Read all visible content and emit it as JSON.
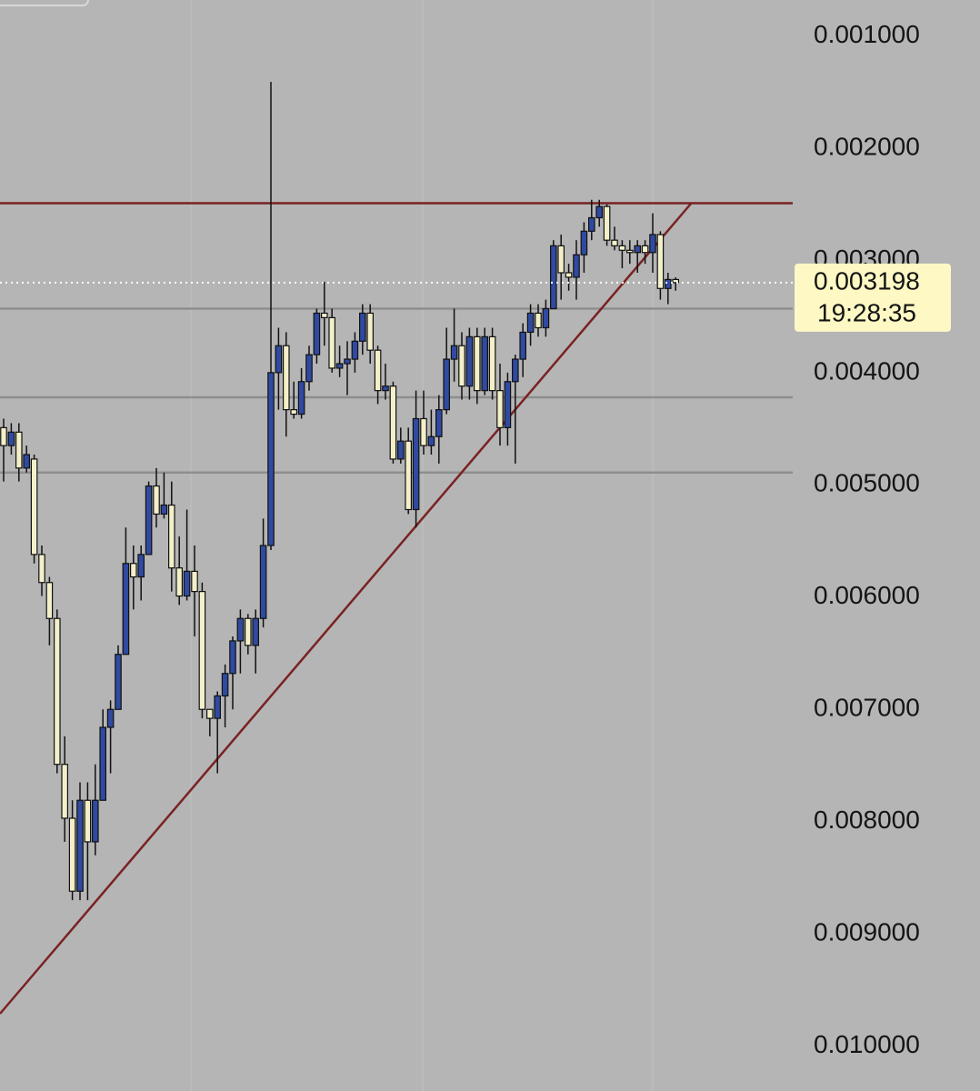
{
  "chart_data": {
    "type": "candlestick",
    "open": [
      0.00449,
      0.00465,
      0.00453,
      0.00485,
      0.00477,
      0.00562,
      0.00587,
      0.00619,
      0.00749,
      0.00797,
      0.00862,
      0.00781,
      0.00818,
      0.00781,
      0.00716,
      0.007,
      0.00651,
      0.0057,
      0.00582,
      0.00562,
      0.00501,
      0.00526,
      0.00518,
      0.00574,
      0.00599,
      0.00577,
      0.00595,
      0.007,
      0.00708,
      0.00688,
      0.00668,
      0.00639,
      0.00619,
      0.00643,
      0.00619,
      0.00554,
      0.004,
      0.00376,
      0.00433,
      0.00437,
      0.00408,
      0.00384,
      0.00347,
      0.00351,
      0.00396,
      0.00392,
      0.00388,
      0.00372,
      0.00347,
      0.0038,
      0.00416,
      0.00412,
      0.00477,
      0.00461,
      0.00522,
      0.00441,
      0.00465,
      0.00457,
      0.00433,
      0.00388,
      0.00376,
      0.00412,
      0.00368,
      0.00416,
      0.00368,
      0.00416,
      0.00449,
      0.00408,
      0.00388,
      0.00364,
      0.00347,
      0.0036,
      0.00343,
      0.00287,
      0.00311,
      0.00315,
      0.00295,
      0.00274,
      0.00262,
      0.00252,
      0.00282,
      0.00287,
      0.00291,
      0.00293,
      0.00287,
      0.00293,
      0.00277,
      0.00325,
      0.00317
    ],
    "high": [
      0.00497,
      0.00473,
      0.00497,
      0.00489,
      0.0057,
      0.00599,
      0.00643,
      0.00757,
      0.00818,
      0.0087,
      0.0087,
      0.0087,
      0.0083,
      0.00781,
      0.00757,
      0.007,
      0.00651,
      0.00611,
      0.00603,
      0.00562,
      0.00538,
      0.0053,
      0.00595,
      0.00607,
      0.00603,
      0.00635,
      0.00708,
      0.00724,
      0.00757,
      0.00716,
      0.007,
      0.00668,
      0.00651,
      0.00668,
      0.00627,
      0.00558,
      0.00433,
      0.00457,
      0.00441,
      0.00441,
      0.00416,
      0.00392,
      0.00376,
      0.004,
      0.00404,
      0.0042,
      0.004,
      0.00384,
      0.00392,
      0.00428,
      0.00424,
      0.00481,
      0.00481,
      0.00526,
      0.00538,
      0.00473,
      0.00473,
      0.00481,
      0.00437,
      0.00408,
      0.00424,
      0.00424,
      0.00428,
      0.0042,
      0.00424,
      0.00465,
      0.00465,
      0.00481,
      0.00404,
      0.00376,
      0.00368,
      0.00368,
      0.00343,
      0.00335,
      0.00327,
      0.00335,
      0.00311,
      0.00282,
      0.0027,
      0.00287,
      0.00291,
      0.00307,
      0.00303,
      0.00311,
      0.00303,
      0.00311,
      0.00335,
      0.00339,
      0.00327
    ],
    "low": [
      0.00441,
      0.00445,
      0.00445,
      0.00465,
      0.00473,
      0.00554,
      0.00582,
      0.00611,
      0.00724,
      0.00781,
      0.00765,
      0.00765,
      0.00749,
      0.007,
      0.00692,
      0.00643,
      0.00538,
      0.00554,
      0.00554,
      0.00497,
      0.00485,
      0.00489,
      0.00497,
      0.00546,
      0.00522,
      0.00554,
      0.00587,
      0.007,
      0.00684,
      0.0066,
      0.00635,
      0.00611,
      0.00615,
      0.00611,
      0.0053,
      0.00141,
      0.0036,
      0.00364,
      0.00408,
      0.00396,
      0.00376,
      0.00343,
      0.00319,
      0.00343,
      0.00376,
      0.00372,
      0.00364,
      0.00339,
      0.00339,
      0.00376,
      0.00392,
      0.00408,
      0.00449,
      0.00449,
      0.00416,
      0.00416,
      0.00433,
      0.0042,
      0.0036,
      0.00343,
      0.00364,
      0.0036,
      0.0036,
      0.0036,
      0.0036,
      0.00392,
      0.004,
      0.00384,
      0.00356,
      0.00339,
      0.00339,
      0.00335,
      0.00282,
      0.00277,
      0.00303,
      0.00282,
      0.00266,
      0.00246,
      0.00246,
      0.0025,
      0.0027,
      0.00282,
      0.00282,
      0.00282,
      0.00282,
      0.00258,
      0.00274,
      0.00311,
      0.00315
    ],
    "close": [
      0.00465,
      0.00453,
      0.00485,
      0.00473,
      0.00562,
      0.00587,
      0.00619,
      0.00749,
      0.00797,
      0.00862,
      0.00781,
      0.00818,
      0.00781,
      0.00716,
      0.007,
      0.00651,
      0.0057,
      0.00582,
      0.00562,
      0.00501,
      0.00526,
      0.00518,
      0.00574,
      0.00599,
      0.00577,
      0.00595,
      0.007,
      0.00708,
      0.00688,
      0.00668,
      0.00639,
      0.00619,
      0.00643,
      0.00619,
      0.00554,
      0.004,
      0.00376,
      0.00433,
      0.00437,
      0.00408,
      0.00384,
      0.00347,
      0.00351,
      0.00396,
      0.00392,
      0.00388,
      0.00372,
      0.00347,
      0.0038,
      0.00416,
      0.00412,
      0.00477,
      0.00461,
      0.00522,
      0.00441,
      0.00465,
      0.00457,
      0.00433,
      0.00388,
      0.00376,
      0.00412,
      0.00368,
      0.00416,
      0.00368,
      0.00416,
      0.00449,
      0.00408,
      0.00388,
      0.00364,
      0.00347,
      0.0036,
      0.00343,
      0.00287,
      0.00311,
      0.00315,
      0.00295,
      0.00274,
      0.00262,
      0.00252,
      0.00282,
      0.00287,
      0.00291,
      0.00293,
      0.00287,
      0.00293,
      0.00277,
      0.00325,
      0.00317,
      0.003198
    ],
    "up_color": "#2f4aa0",
    "down_color": "#f3efc9",
    "ylim": [
      0.0104,
      0.00068
    ],
    "yticks": [
      {
        "value": 0.001,
        "label": "0.001000"
      },
      {
        "value": 0.002,
        "label": "0.002000"
      },
      {
        "value": 0.003,
        "label": "0.003000"
      },
      {
        "value": 0.004,
        "label": "0.004000"
      },
      {
        "value": 0.005,
        "label": "0.005000"
      },
      {
        "value": 0.006,
        "label": "0.006000"
      },
      {
        "value": 0.007,
        "label": "0.007000"
      },
      {
        "value": 0.008,
        "label": "0.008000"
      },
      {
        "value": 0.009,
        "label": "0.009000"
      },
      {
        "value": 0.01,
        "label": "0.010000"
      }
    ],
    "grid": true,
    "hlines": [
      {
        "value": 0.00249,
        "color": "#7a2222"
      },
      {
        "value": 0.00343,
        "color": "#8e8e8e"
      },
      {
        "value": 0.00422,
        "color": "#8e8e8e"
      },
      {
        "value": 0.00489,
        "color": "#8e8e8e"
      }
    ],
    "last_price": {
      "value": 0.003198,
      "label": "0.003198"
    },
    "countdown": "19:28:35"
  }
}
